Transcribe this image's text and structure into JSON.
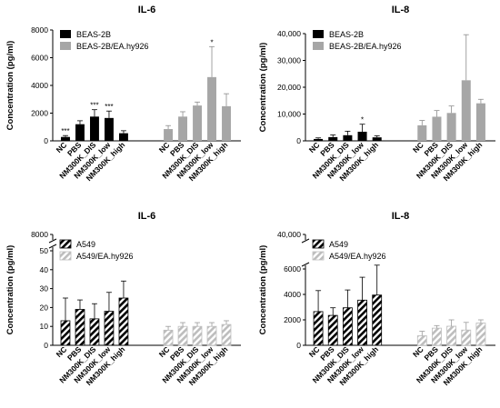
{
  "colors": {
    "solid": "#000000",
    "gray": "#a6a6a6",
    "gray_hatch": "#bdbdbd",
    "error": "#000000"
  },
  "chart_data": [
    {
      "id": "top-left",
      "type": "bar",
      "title": "IL-6",
      "ylabel": "Concentration (pg/ml)",
      "ylim": [
        0,
        8000
      ],
      "yticks": [
        "0",
        "2000",
        "4000",
        "6000",
        "8000"
      ],
      "categories": [
        "NC",
        "PBS",
        "NM300K_DIS",
        "NM300K_low",
        "NM300K_high"
      ],
      "legend": "top-left",
      "series": [
        {
          "name": "BEAS-2B",
          "style": "solid",
          "values": [
            280,
            1200,
            1750,
            1650,
            550
          ],
          "errors": [
            100,
            250,
            500,
            500,
            180
          ],
          "sig": [
            "***",
            "",
            "***",
            "***",
            ""
          ]
        },
        {
          "name": "BEAS-2B/EA.hy926",
          "style": "gray",
          "values": [
            850,
            1750,
            2550,
            4600,
            2500
          ],
          "errors": [
            250,
            350,
            250,
            2200,
            900
          ],
          "sig": [
            "",
            "",
            "",
            "*",
            ""
          ]
        }
      ]
    },
    {
      "id": "top-right",
      "type": "bar",
      "title": "IL-8",
      "ylabel": "Concentration (pg/ml)",
      "ylim": [
        0,
        40000
      ],
      "yticks": [
        "0",
        "10,000",
        "20,000",
        "30,000",
        "40,000"
      ],
      "categories": [
        "NC",
        "PBS",
        "NM300K_DIS",
        "NM300K_low",
        "NM300K_high"
      ],
      "legend": "top-left",
      "series": [
        {
          "name": "BEAS-2B",
          "style": "solid",
          "values": [
            700,
            1400,
            2100,
            3400,
            1300
          ],
          "errors": [
            400,
            800,
            1500,
            2800,
            600
          ],
          "sig": [
            "",
            "",
            "",
            "*",
            ""
          ]
        },
        {
          "name": "BEAS-2B/EA.hy926",
          "style": "gray",
          "values": [
            5800,
            9000,
            10400,
            22600,
            14000
          ],
          "errors": [
            1800,
            2300,
            2600,
            17000,
            1500
          ],
          "sig": [
            "",
            "",
            "",
            "",
            ""
          ]
        }
      ]
    },
    {
      "id": "bottom-left",
      "type": "bar",
      "title": "IL-6",
      "ylabel": "Concentration (pg/ml)",
      "axis_break": true,
      "ylim_lower": [
        0,
        50
      ],
      "ylim_upper_label": "8000",
      "yticks": [
        "0",
        "10",
        "20",
        "30",
        "40",
        "50"
      ],
      "categories": [
        "NC",
        "PBS",
        "NM300K_DIS",
        "NM300K_low",
        "NM300K_high"
      ],
      "legend": "top-left",
      "series": [
        {
          "name": "A549",
          "style": "hatch-dark",
          "values": [
            13,
            19,
            14,
            18,
            25
          ],
          "errors": [
            12,
            5,
            8,
            10,
            9
          ],
          "sig": [
            "",
            "",
            "",
            "",
            ""
          ]
        },
        {
          "name": "A549/EA.hy926",
          "style": "hatch-gray",
          "values": [
            8,
            10,
            10,
            10,
            11
          ],
          "errors": [
            2,
            2,
            2,
            2,
            2
          ],
          "sig": [
            "",
            "",
            "",
            "",
            ""
          ]
        }
      ]
    },
    {
      "id": "bottom-right",
      "type": "bar",
      "title": "IL-8",
      "ylabel": "Concentration (pg/ml)",
      "axis_break": true,
      "ylim_lower": [
        0,
        6000
      ],
      "ylim_upper_label": "40,000",
      "yticks": [
        "0",
        "2000",
        "4000",
        "6000"
      ],
      "categories": [
        "NC",
        "PBS",
        "NM300K_DIS",
        "NM300K_low",
        "NM300K_high"
      ],
      "legend": "top-left",
      "series": [
        {
          "name": "A549",
          "style": "hatch-dark",
          "values": [
            2650,
            2350,
            2950,
            3550,
            3950
          ],
          "errors": [
            1650,
            600,
            1400,
            1800,
            2350
          ],
          "sig": [
            "",
            "",
            "",
            "",
            ""
          ]
        },
        {
          "name": "A549/EA.hy926",
          "style": "hatch-gray",
          "values": [
            750,
            1350,
            1500,
            1200,
            1750
          ],
          "errors": [
            350,
            200,
            500,
            600,
            250
          ],
          "sig": [
            "",
            "",
            "",
            "",
            ""
          ]
        }
      ]
    }
  ]
}
